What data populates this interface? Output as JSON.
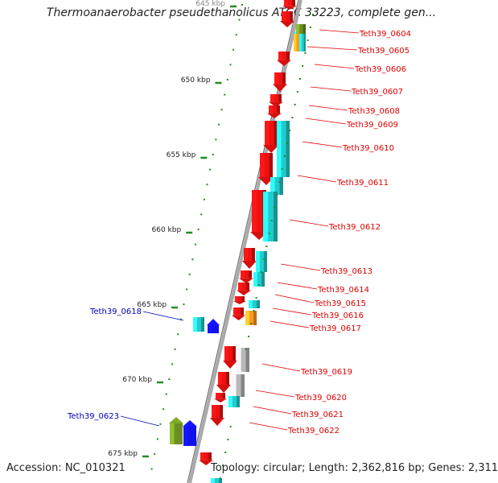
{
  "title": "Thermoanaerobacter pseudethanolicus ATCC 33223, complete gen...",
  "footer": {
    "accession": "Accession: NC_010321",
    "summary": "Topology: circular; Length: 2,362,816 bp; Genes: 2,311"
  },
  "colors": {
    "forward_gene": "#ee1111",
    "reverse_gene": "#22cccc",
    "olive_gene": "#6b8e23",
    "blue_gene": "#1111ee",
    "orange_gene": "#ff9922",
    "gray_gene": "#b8b8b8",
    "backbone": "#909090",
    "tick": "#228b22",
    "label_right": "#dd0000",
    "label_left": "#0000bb"
  },
  "kbp_ticks": [
    {
      "kbp": 645,
      "label": "645 kbp"
    },
    {
      "kbp": 650,
      "label": "650 kbp"
    },
    {
      "kbp": 655,
      "label": "655 kbp"
    },
    {
      "kbp": 660,
      "label": "660 kbp"
    },
    {
      "kbp": 665,
      "label": "665 kbp"
    },
    {
      "kbp": 670,
      "label": "670 kbp"
    },
    {
      "kbp": 675,
      "label": "675 kbp"
    }
  ],
  "right_labels": [
    "Teth39_0604",
    "Teth39_0605",
    "Teth39_0606",
    "Teth39_0607",
    "Teth39_0608",
    "Teth39_0609",
    "Teth39_0610",
    "Teth39_0611",
    "Teth39_0612",
    "Teth39_0613",
    "Teth39_0614",
    "Teth39_0615",
    "Teth39_0616",
    "Teth39_0617",
    "Teth39_0619",
    "Teth39_0620",
    "Teth39_0621",
    "Teth39_0622"
  ],
  "left_labels": [
    "Teth39_0618",
    "Teth39_0623"
  ]
}
